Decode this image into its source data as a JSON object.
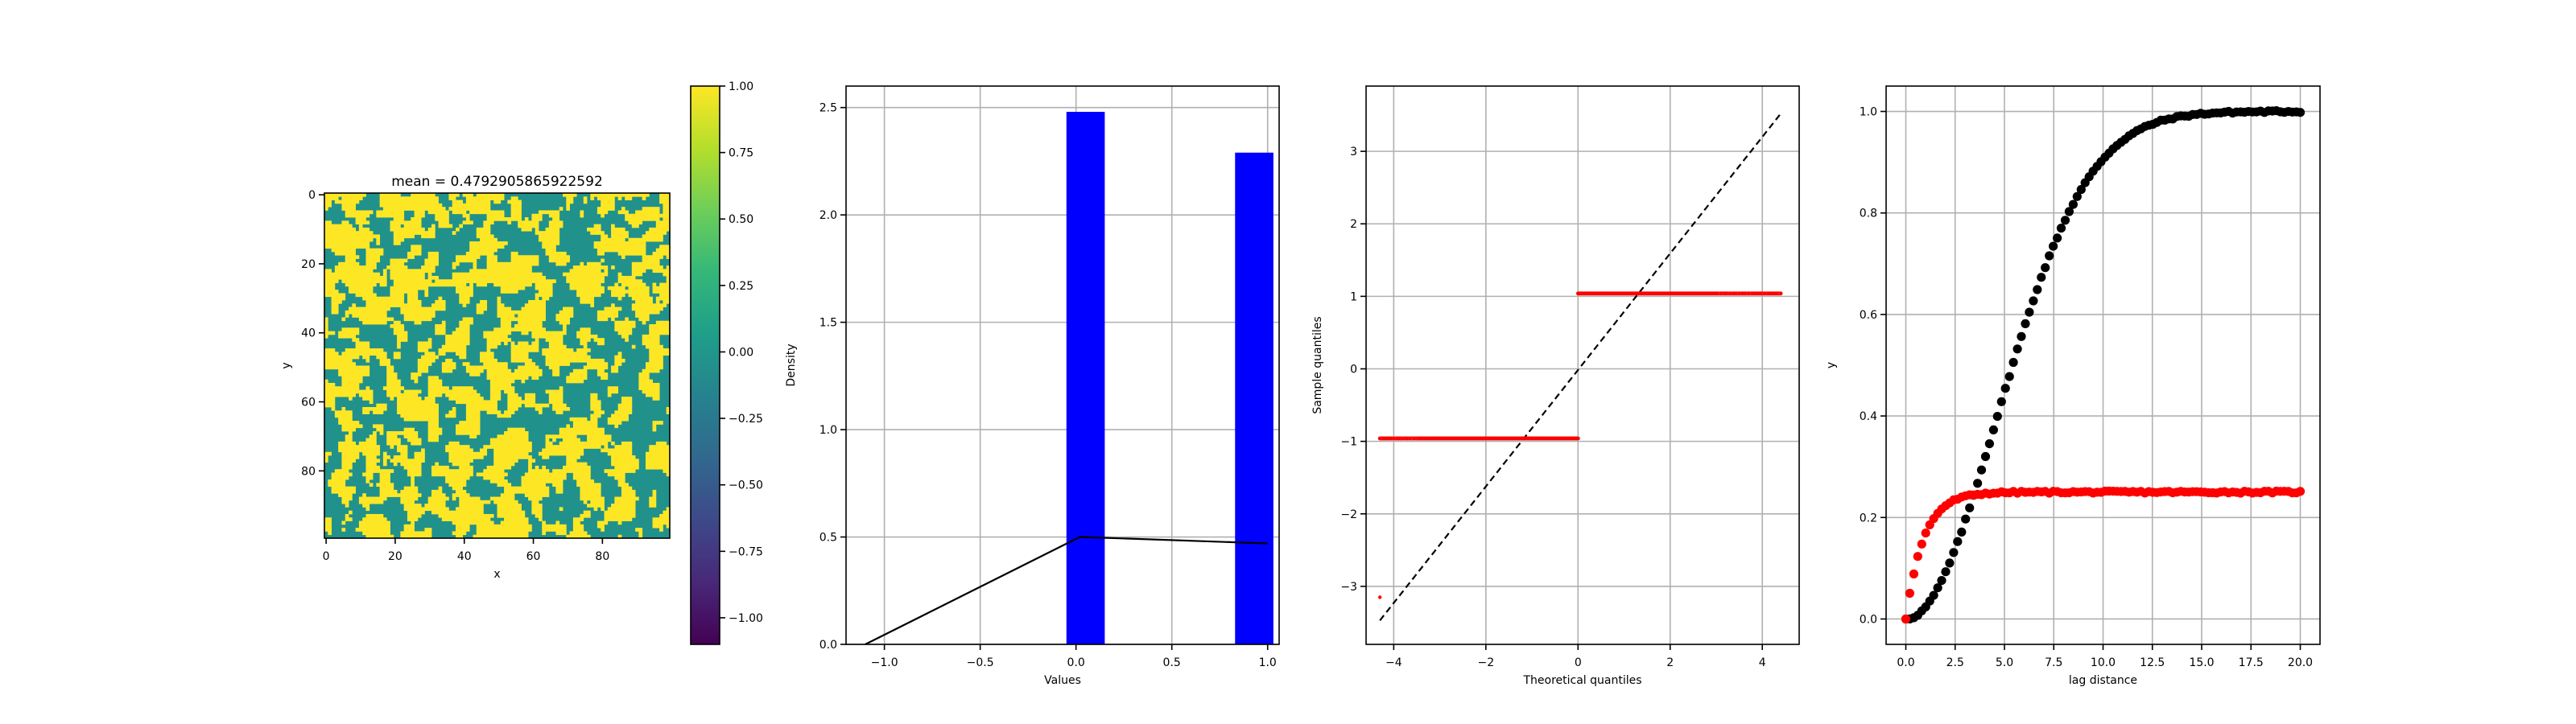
{
  "chart_data": [
    {
      "type": "heatmap",
      "title": "mean = 0.4792905865922592",
      "xlabel": "x",
      "ylabel": "y",
      "grid_size": [
        100,
        100
      ],
      "value_range": [
        -1.0,
        1.0
      ],
      "mean": 0.4792905865922592,
      "categories_values": [
        0,
        1
      ],
      "xticks": [
        "0",
        "20",
        "40",
        "60",
        "80"
      ],
      "yticks": [
        "0",
        "20",
        "40",
        "60",
        "80"
      ],
      "xlim": [
        0,
        100
      ],
      "ylim": [
        100,
        0
      ],
      "colormap": "viridis",
      "colorbar": {
        "ticks": [
          "1.00",
          "0.75",
          "0.50",
          "0.25",
          "0.00",
          "−0.25",
          "−0.50",
          "−0.75",
          "−1.00"
        ],
        "range": [
          -1.1,
          1.0
        ]
      },
      "colors": {
        "low": "#21918c",
        "high": "#fde725"
      },
      "grid": false
    },
    {
      "type": "bar",
      "xlabel": "Values",
      "ylabel": "Density",
      "xlim": [
        -1.2,
        1.06
      ],
      "ylim": [
        0,
        2.6
      ],
      "xticks": [
        "−1.0",
        "−0.5",
        "0.0",
        "0.5",
        "1.0"
      ],
      "yticks": [
        "0.0",
        "0.5",
        "1.0",
        "1.5",
        "2.0",
        "2.5"
      ],
      "bars": [
        {
          "x0": -0.05,
          "x1": 0.15,
          "value": 2.48
        },
        {
          "x0": 0.83,
          "x1": 1.03,
          "value": 2.29
        }
      ],
      "line": {
        "x": [
          -1.1,
          0.02,
          1.0
        ],
        "y": [
          0.0,
          0.5,
          0.47
        ]
      },
      "bar_color": "#0000ff",
      "line_color": "#000000",
      "grid": true
    },
    {
      "type": "scatter",
      "xlabel": "Theoretical quantiles",
      "ylabel": "Sample quantiles",
      "xlim": [
        -4.6,
        4.8
      ],
      "ylim": [
        -3.8,
        3.9
      ],
      "xticks": [
        "−4",
        "−2",
        "0",
        "2",
        "4"
      ],
      "yticks": [
        "−3",
        "−2",
        "−1",
        "0",
        "1",
        "2",
        "3"
      ],
      "series": [
        {
          "segments": [
            {
              "x": [
                -4.3,
                -4.3
              ],
              "y": [
                -3.15,
                -3.15
              ]
            },
            {
              "x": [
                -4.3,
                0.0
              ],
              "y": [
                -0.96,
                -0.96
              ]
            },
            {
              "x": [
                0.0,
                4.4
              ],
              "y": [
                1.04,
                1.04
              ]
            }
          ]
        }
      ],
      "reference_line": {
        "x": [
          -4.3,
          4.4
        ],
        "y": [
          -3.47,
          3.52
        ]
      },
      "point_color": "#ff0000",
      "line_color": "#000000",
      "grid": true
    },
    {
      "type": "scatter",
      "xlabel": "lag distance",
      "ylabel": "y",
      "xlim": [
        -1.0,
        21.0
      ],
      "ylim": [
        -0.05,
        1.05
      ],
      "xticks": [
        "0.0",
        "2.5",
        "5.0",
        "7.5",
        "10.0",
        "12.5",
        "15.0",
        "17.5",
        "20.0"
      ],
      "yticks": [
        "0.0",
        "0.2",
        "0.4",
        "0.6",
        "0.8",
        "1.0"
      ],
      "series": [
        {
          "color": "#000000",
          "model": "gaussian",
          "sill": 1.0,
          "range": 6.5,
          "n": 100,
          "x_max": 20.0
        },
        {
          "color": "#ff0000",
          "model": "exponential",
          "sill": 0.25,
          "range": 0.9,
          "n": 100,
          "x_max": 20.0
        }
      ],
      "grid": true
    }
  ]
}
